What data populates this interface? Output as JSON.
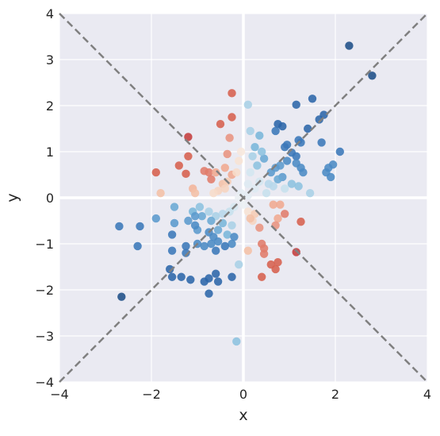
{
  "chart_data": {
    "type": "scatter",
    "xlabel": "x",
    "ylabel": "y",
    "xlim": [
      -4,
      4
    ],
    "ylim": [
      -4,
      4
    ],
    "xticks": [
      -4,
      -2,
      0,
      2,
      4
    ],
    "yticks": [
      -4,
      -3,
      -2,
      -1,
      0,
      1,
      2,
      3,
      4
    ],
    "xtick_labels": [
      "−4",
      "−2",
      "0",
      "2",
      "4"
    ],
    "ytick_labels": [
      "−4",
      "−3",
      "−2",
      "−1",
      "0",
      "1",
      "2",
      "3",
      "4"
    ],
    "grid": true,
    "background": "#eaeaf2",
    "colormap": "RdBu",
    "reference_lines": [
      {
        "slope": 1,
        "intercept": 0,
        "style": "dashed",
        "color": "#808080"
      },
      {
        "slope": -1,
        "intercept": 0,
        "style": "dashed",
        "color": "#808080"
      }
    ],
    "points": [
      {
        "x": 2.3,
        "y": 3.3,
        "c": "#1e4e88"
      },
      {
        "x": 2.8,
        "y": 2.65,
        "c": "#1e4e88"
      },
      {
        "x": -2.65,
        "y": -2.15,
        "c": "#1e4e88"
      },
      {
        "x": 1.5,
        "y": 2.15,
        "c": "#2b65a8"
      },
      {
        "x": 1.75,
        "y": 1.8,
        "c": "#2b65a8"
      },
      {
        "x": 1.65,
        "y": 1.7,
        "c": "#2b65a8"
      },
      {
        "x": 1.15,
        "y": 2.02,
        "c": "#2b65a8"
      },
      {
        "x": 1.4,
        "y": 1.5,
        "c": "#2b65a8"
      },
      {
        "x": 0.85,
        "y": 1.55,
        "c": "#2b65a8"
      },
      {
        "x": 0.75,
        "y": 1.6,
        "c": "#2b65a8"
      },
      {
        "x": 0.7,
        "y": 1.45,
        "c": "#3a77b8"
      },
      {
        "x": 0.95,
        "y": 1.15,
        "c": "#3a77b8"
      },
      {
        "x": 0.9,
        "y": 1.1,
        "c": "#3a77b8"
      },
      {
        "x": 1.2,
        "y": 1.25,
        "c": "#3a77b8"
      },
      {
        "x": 1.25,
        "y": 1.2,
        "c": "#3a77b8"
      },
      {
        "x": 1.7,
        "y": 1.2,
        "c": "#3a77b8"
      },
      {
        "x": 2.1,
        "y": 1.0,
        "c": "#3a77b8"
      },
      {
        "x": 1.05,
        "y": 0.98,
        "c": "#3a77b8"
      },
      {
        "x": 1.15,
        "y": 0.9,
        "c": "#3a77b8"
      },
      {
        "x": 1.15,
        "y": 0.75,
        "c": "#4a8ac4"
      },
      {
        "x": 1.25,
        "y": 0.65,
        "c": "#4a8ac4"
      },
      {
        "x": 1.3,
        "y": 0.55,
        "c": "#4a8ac4"
      },
      {
        "x": 1.85,
        "y": 0.65,
        "c": "#4a8ac4"
      },
      {
        "x": 1.95,
        "y": 0.72,
        "c": "#4a8ac4"
      },
      {
        "x": 1.8,
        "y": 0.55,
        "c": "#4a8ac4"
      },
      {
        "x": 1.9,
        "y": 0.45,
        "c": "#4a8ac4"
      },
      {
        "x": 0.95,
        "y": 0.8,
        "c": "#4a8ac4"
      },
      {
        "x": 0.8,
        "y": 0.7,
        "c": "#5b9acd"
      },
      {
        "x": 0.7,
        "y": 0.65,
        "c": "#5b9acd"
      },
      {
        "x": 0.6,
        "y": 0.55,
        "c": "#5b9acd"
      },
      {
        "x": 0.85,
        "y": 0.45,
        "c": "#5b9acd"
      },
      {
        "x": 0.75,
        "y": 0.4,
        "c": "#6aa9d4"
      },
      {
        "x": 0.45,
        "y": 0.85,
        "c": "#6aa9d4"
      },
      {
        "x": 0.35,
        "y": 1.35,
        "c": "#79b6da"
      },
      {
        "x": 0.25,
        "y": 1.1,
        "c": "#79b6da"
      },
      {
        "x": 0.4,
        "y": 1.0,
        "c": "#8cc1df"
      },
      {
        "x": 0.3,
        "y": 0.7,
        "c": "#8cc1df"
      },
      {
        "x": 1.05,
        "y": 0.3,
        "c": "#8cc1df"
      },
      {
        "x": 1.2,
        "y": 0.25,
        "c": "#8cc1df"
      },
      {
        "x": 1.45,
        "y": 0.1,
        "c": "#a8d0e6"
      },
      {
        "x": 0.1,
        "y": 2.02,
        "c": "#a8d0e6"
      },
      {
        "x": 0.15,
        "y": 1.45,
        "c": "#a8d0e6"
      },
      {
        "x": 0.2,
        "y": 0.9,
        "c": "#a8d0e6"
      },
      {
        "x": 0.55,
        "y": 0.3,
        "c": "#b7d7ea"
      },
      {
        "x": 0.65,
        "y": 0.25,
        "c": "#b7d7ea"
      },
      {
        "x": 0.9,
        "y": 0.2,
        "c": "#c6e0ed"
      },
      {
        "x": 0.5,
        "y": 0.1,
        "c": "#c6e0ed"
      },
      {
        "x": 0.35,
        "y": 0.35,
        "c": "#d3e6f0"
      },
      {
        "x": 0.15,
        "y": 0.55,
        "c": "#d3e6f0"
      },
      {
        "x": 0.25,
        "y": 0.2,
        "c": "#dde9f1"
      },
      {
        "x": 0.1,
        "y": 0.3,
        "c": "#dde9f1"
      },
      {
        "x": 0.1,
        "y": 0.05,
        "c": "#e4ecf2"
      },
      {
        "x": -0.05,
        "y": 0.1,
        "c": "#e4ecf2"
      },
      {
        "x": -0.1,
        "y": 0.0,
        "c": "#eaeff3"
      },
      {
        "x": 0.0,
        "y": -0.15,
        "c": "#eaeff3"
      },
      {
        "x": -0.2,
        "y": -0.2,
        "c": "#d6e7f0"
      },
      {
        "x": -0.3,
        "y": -0.3,
        "c": "#c6e0ed"
      },
      {
        "x": -0.45,
        "y": -0.35,
        "c": "#b7d7ea"
      },
      {
        "x": -0.6,
        "y": -0.4,
        "c": "#a8d0e6"
      },
      {
        "x": -0.75,
        "y": -0.3,
        "c": "#a8d0e6"
      },
      {
        "x": -0.25,
        "y": -0.6,
        "c": "#a8d0e6"
      },
      {
        "x": -0.1,
        "y": -1.45,
        "c": "#a8d0e6"
      },
      {
        "x": -0.15,
        "y": -3.12,
        "c": "#8cc1df"
      },
      {
        "x": -0.95,
        "y": -0.2,
        "c": "#8cc1df"
      },
      {
        "x": -1.1,
        "y": -0.3,
        "c": "#79b6da"
      },
      {
        "x": -0.45,
        "y": -0.55,
        "c": "#79b6da"
      },
      {
        "x": -0.35,
        "y": -0.8,
        "c": "#79b6da"
      },
      {
        "x": -0.55,
        "y": -0.7,
        "c": "#6aa9d4"
      },
      {
        "x": -0.7,
        "y": -0.5,
        "c": "#6aa9d4"
      },
      {
        "x": -0.9,
        "y": -0.4,
        "c": "#6aa9d4"
      },
      {
        "x": -1.0,
        "y": -0.7,
        "c": "#5b9acd"
      },
      {
        "x": -1.5,
        "y": -0.2,
        "c": "#6aa9d4"
      },
      {
        "x": -1.5,
        "y": -0.55,
        "c": "#5b9acd"
      },
      {
        "x": -1.9,
        "y": -0.45,
        "c": "#5b9acd"
      },
      {
        "x": -1.2,
        "y": -0.5,
        "c": "#5b9acd"
      },
      {
        "x": -1.05,
        "y": -0.4,
        "c": "#5b9acd"
      },
      {
        "x": -1.05,
        "y": -0.6,
        "c": "#4a8ac4"
      },
      {
        "x": -0.75,
        "y": -0.75,
        "c": "#4a8ac4"
      },
      {
        "x": -0.65,
        "y": -0.85,
        "c": "#4a8ac4"
      },
      {
        "x": -0.55,
        "y": -0.95,
        "c": "#4a8ac4"
      },
      {
        "x": -0.25,
        "y": -1.0,
        "c": "#4a8ac4"
      },
      {
        "x": -0.2,
        "y": -0.85,
        "c": "#4a8ac4"
      },
      {
        "x": -0.85,
        "y": -1.05,
        "c": "#4a8ac4"
      },
      {
        "x": -0.7,
        "y": -1.0,
        "c": "#4a8ac4"
      },
      {
        "x": -1.0,
        "y": -1.0,
        "c": "#4a8ac4"
      },
      {
        "x": -1.25,
        "y": -1.05,
        "c": "#3a77b8"
      },
      {
        "x": -1.25,
        "y": -1.2,
        "c": "#3a77b8"
      },
      {
        "x": -0.6,
        "y": -1.15,
        "c": "#3a77b8"
      },
      {
        "x": -0.4,
        "y": -1.05,
        "c": "#3a77b8"
      },
      {
        "x": -1.55,
        "y": -0.8,
        "c": "#3a77b8"
      },
      {
        "x": -1.55,
        "y": -1.15,
        "c": "#3a77b8"
      },
      {
        "x": -2.25,
        "y": -0.62,
        "c": "#3a77b8"
      },
      {
        "x": -2.7,
        "y": -0.62,
        "c": "#3a77b8"
      },
      {
        "x": -2.3,
        "y": -1.05,
        "c": "#3a77b8"
      },
      {
        "x": -0.6,
        "y": -1.65,
        "c": "#2b65a8"
      },
      {
        "x": -0.75,
        "y": -1.75,
        "c": "#2b65a8"
      },
      {
        "x": -0.55,
        "y": -1.82,
        "c": "#2b65a8"
      },
      {
        "x": -0.85,
        "y": -1.82,
        "c": "#2b65a8"
      },
      {
        "x": -0.25,
        "y": -1.72,
        "c": "#2b65a8"
      },
      {
        "x": -1.15,
        "y": -1.78,
        "c": "#2b65a8"
      },
      {
        "x": -1.35,
        "y": -1.72,
        "c": "#2b65a8"
      },
      {
        "x": -1.6,
        "y": -1.55,
        "c": "#2b65a8"
      },
      {
        "x": -1.55,
        "y": -1.72,
        "c": "#2b65a8"
      },
      {
        "x": -0.75,
        "y": -2.08,
        "c": "#2b65a8"
      },
      {
        "x": -0.25,
        "y": 2.27,
        "c": "#d6604d"
      },
      {
        "x": -0.25,
        "y": 1.75,
        "c": "#d6604d"
      },
      {
        "x": -0.5,
        "y": 1.6,
        "c": "#d6604d"
      },
      {
        "x": -1.2,
        "y": 1.32,
        "c": "#c43c3c"
      },
      {
        "x": -1.2,
        "y": 0.9,
        "c": "#d6604d"
      },
      {
        "x": -1.4,
        "y": 0.7,
        "c": "#d6604d"
      },
      {
        "x": -1.9,
        "y": 0.55,
        "c": "#d6604d"
      },
      {
        "x": -1.25,
        "y": 0.52,
        "c": "#d6604d"
      },
      {
        "x": -0.85,
        "y": 0.58,
        "c": "#e07b6a"
      },
      {
        "x": -0.75,
        "y": 0.55,
        "c": "#e07b6a"
      },
      {
        "x": -0.7,
        "y": 0.4,
        "c": "#e07b6a"
      },
      {
        "x": -0.3,
        "y": 1.3,
        "c": "#e8937f"
      },
      {
        "x": -0.35,
        "y": 0.95,
        "c": "#e8937f"
      },
      {
        "x": -0.4,
        "y": 0.65,
        "c": "#f0a98f"
      },
      {
        "x": -0.25,
        "y": 0.5,
        "c": "#f0a98f"
      },
      {
        "x": -0.6,
        "y": 0.55,
        "c": "#f0a98f"
      },
      {
        "x": -1.1,
        "y": 0.2,
        "c": "#f2b49a"
      },
      {
        "x": -1.05,
        "y": 0.1,
        "c": "#f4c0a6"
      },
      {
        "x": -1.8,
        "y": 0.1,
        "c": "#f4c0a6"
      },
      {
        "x": -0.45,
        "y": 0.3,
        "c": "#f4c0a6"
      },
      {
        "x": -0.35,
        "y": 0.35,
        "c": "#f6ccb4"
      },
      {
        "x": -0.4,
        "y": 0.2,
        "c": "#f6d4bf"
      },
      {
        "x": -0.55,
        "y": 0.15,
        "c": "#f6d4bf"
      },
      {
        "x": -0.65,
        "y": 0.1,
        "c": "#f7dcca"
      },
      {
        "x": -0.15,
        "y": 0.55,
        "c": "#f7dcca"
      },
      {
        "x": -0.1,
        "y": 0.8,
        "c": "#f7e2d4"
      },
      {
        "x": -0.05,
        "y": 1.0,
        "c": "#f7e7dc"
      },
      {
        "x": 0.1,
        "y": -0.3,
        "c": "#f7e2d4"
      },
      {
        "x": 0.2,
        "y": -0.5,
        "c": "#f6d4bf"
      },
      {
        "x": 0.25,
        "y": -0.35,
        "c": "#f6ccb4"
      },
      {
        "x": 0.15,
        "y": -0.45,
        "c": "#f4c0a6"
      },
      {
        "x": 0.1,
        "y": -1.15,
        "c": "#f4c0a6"
      },
      {
        "x": 0.75,
        "y": -0.45,
        "c": "#f0a98f"
      },
      {
        "x": 0.8,
        "y": -0.15,
        "c": "#f0a98f"
      },
      {
        "x": 0.65,
        "y": -0.15,
        "c": "#f0a98f"
      },
      {
        "x": 0.35,
        "y": -0.65,
        "c": "#e8937f"
      },
      {
        "x": 0.7,
        "y": -0.6,
        "c": "#e8937f"
      },
      {
        "x": 0.9,
        "y": -0.35,
        "c": "#e07b6a"
      },
      {
        "x": 0.4,
        "y": -1.0,
        "c": "#e07b6a"
      },
      {
        "x": 0.45,
        "y": -1.1,
        "c": "#e07b6a"
      },
      {
        "x": 0.45,
        "y": -1.22,
        "c": "#e07b6a"
      },
      {
        "x": 1.25,
        "y": -0.52,
        "c": "#d6604d"
      },
      {
        "x": 0.4,
        "y": -1.72,
        "c": "#d6604d"
      },
      {
        "x": 0.6,
        "y": -1.45,
        "c": "#d6604d"
      },
      {
        "x": 0.75,
        "y": -1.4,
        "c": "#d6604d"
      },
      {
        "x": 0.7,
        "y": -1.55,
        "c": "#d6604d"
      },
      {
        "x": 1.15,
        "y": -1.18,
        "c": "#c43c3c"
      }
    ]
  }
}
